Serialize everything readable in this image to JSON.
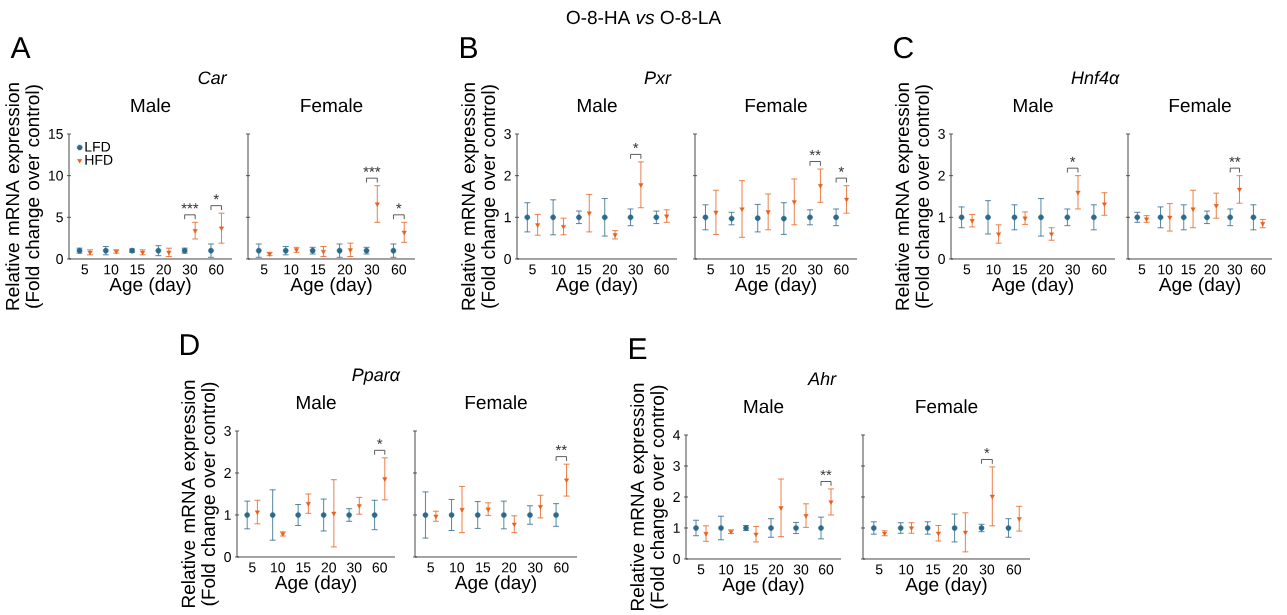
{
  "chart_data": [
    {
      "type": "scatter",
      "title": "*Car*",
      "subtitle": "Male",
      "xlabel": "Age (day)",
      "ylabel": "Relative  mRNA expression (Fold change over control)",
      "categories": [
        "5",
        "10",
        "15",
        "20",
        "30",
        "60"
      ],
      "ylim": [
        0,
        15
      ],
      "yticks": [
        0,
        5,
        10,
        15
      ],
      "legend": "top left",
      "series": [
        {
          "name": "LFD",
          "color": "#2b6a8c",
          "marker": "circle",
          "values": [
            1,
            1,
            1,
            1,
            1,
            1
          ],
          "errors": [
            0.3,
            0.5,
            0.2,
            0.6,
            0.3,
            0.8
          ]
        },
        {
          "name": "HFD",
          "color": "#e8601c",
          "marker": "triangle",
          "values": [
            0.8,
            0.9,
            0.8,
            0.8,
            3.4,
            3.7
          ],
          "errors": [
            0.3,
            0.2,
            0.3,
            0.5,
            1.0,
            1.8
          ]
        }
      ],
      "annotations": [
        "O-8-HA *vs* O-8-LA",
        "A",
        {
          "text": "***",
          "x": "30",
          "y": 3.4
        },
        {
          "text": "*",
          "x": "60",
          "y": 3.7
        }
      ]
    },
    {
      "type": "scatter",
      "subtitle": "Female",
      "xlabel": "Age (day)",
      "categories": [
        "5",
        "10",
        "15",
        "20",
        "30",
        "60"
      ],
      "ylim": [
        0,
        15
      ],
      "yticks": [
        0,
        5,
        10,
        15
      ],
      "tick_labels": "x",
      "series": [
        {
          "color": "#2b6a8c",
          "marker": "circle",
          "values": [
            1,
            1,
            1,
            1,
            1,
            1
          ],
          "errors": [
            0.8,
            0.5,
            0.4,
            0.8,
            0.4,
            0.8
          ]
        },
        {
          "color": "#e8601c",
          "marker": "triangle",
          "values": [
            0.6,
            1.1,
            0.9,
            1.1,
            6.6,
            3.2
          ],
          "errors": [
            0.2,
            0.3,
            0.6,
            0.8,
            2.2,
            1.2
          ]
        }
      ],
      "annotations": [
        {
          "text": "***",
          "x": "30",
          "y": 6.6
        },
        {
          "text": "*",
          "x": "60",
          "y": 3.2
        }
      ]
    },
    {
      "type": "scatter",
      "title": "*Pxr*",
      "subtitle": "Male",
      "xlabel": "Age (day)",
      "ylabel": "Relative  mRNA expression (Fold change over control)",
      "categories": [
        "5",
        "10",
        "15",
        "20",
        "30",
        "60"
      ],
      "ylim": [
        0,
        3
      ],
      "yticks": [
        0,
        1,
        2,
        3
      ],
      "series": [
        {
          "color": "#2b6a8c",
          "marker": "circle",
          "values": [
            1,
            1,
            1,
            1,
            1,
            1
          ],
          "errors": [
            0.35,
            0.42,
            0.15,
            0.45,
            0.2,
            0.15
          ]
        },
        {
          "color": "#e8601c",
          "marker": "triangle",
          "values": [
            0.82,
            0.78,
            1.1,
            0.58,
            1.78,
            1.03
          ],
          "errors": [
            0.25,
            0.2,
            0.45,
            0.1,
            0.55,
            0.15
          ]
        }
      ],
      "annotations": [
        "B",
        {
          "text": "*",
          "x": "30",
          "y": 1.78
        }
      ]
    },
    {
      "type": "scatter",
      "subtitle": "Female",
      "xlabel": "Age (day)",
      "categories": [
        "5",
        "10",
        "15",
        "20",
        "30",
        "60"
      ],
      "ylim": [
        0,
        3
      ],
      "yticks": [
        0,
        1,
        2,
        3
      ],
      "tick_labels": "x",
      "series": [
        {
          "color": "#2b6a8c",
          "marker": "circle",
          "values": [
            1,
            0.97,
            0.98,
            0.97,
            1.0,
            1.0
          ],
          "errors": [
            0.3,
            0.15,
            0.33,
            0.38,
            0.18,
            0.2
          ]
        },
        {
          "color": "#e8601c",
          "marker": "triangle",
          "values": [
            1.12,
            1.2,
            1.13,
            1.37,
            1.76,
            1.43
          ],
          "errors": [
            0.53,
            0.68,
            0.43,
            0.55,
            0.4,
            0.33
          ]
        }
      ],
      "annotations": [
        {
          "text": "**",
          "x": "30",
          "y": 1.76
        },
        {
          "text": "*",
          "x": "60",
          "y": 1.43
        }
      ]
    },
    {
      "type": "scatter",
      "title": "*Hnf4α*",
      "subtitle": "Male",
      "xlabel": "Age (day)",
      "ylabel": "Relative  mRNA expression (Fold change over control)",
      "categories": [
        "5",
        "10",
        "15",
        "20",
        "30",
        "60"
      ],
      "ylim": [
        0,
        3
      ],
      "yticks": [
        0,
        1,
        2,
        3
      ],
      "series": [
        {
          "color": "#2b6a8c",
          "marker": "circle",
          "values": [
            1,
            1,
            1,
            1,
            1,
            1
          ],
          "errors": [
            0.25,
            0.4,
            0.3,
            0.45,
            0.2,
            0.3
          ]
        },
        {
          "color": "#e8601c",
          "marker": "triangle",
          "values": [
            0.92,
            0.6,
            0.98,
            0.6,
            1.6,
            1.32
          ],
          "errors": [
            0.15,
            0.22,
            0.15,
            0.15,
            0.4,
            0.27
          ]
        }
      ],
      "annotations": [
        "C",
        {
          "text": "*",
          "x": "30",
          "y": 1.6
        }
      ]
    },
    {
      "type": "scatter",
      "subtitle": "Female",
      "xlabel": "Age (day)",
      "categories": [
        "5",
        "10",
        "15",
        "20",
        "30",
        "60"
      ],
      "ylim": [
        0,
        3
      ],
      "yticks": [
        0,
        1,
        2,
        3
      ],
      "tick_labels": "x",
      "series": [
        {
          "color": "#2b6a8c",
          "marker": "circle",
          "values": [
            1,
            1,
            1,
            1,
            1,
            1
          ],
          "errors": [
            0.12,
            0.25,
            0.3,
            0.15,
            0.2,
            0.3
          ]
        },
        {
          "color": "#e8601c",
          "marker": "triangle",
          "values": [
            0.96,
            1.0,
            1.2,
            1.28,
            1.67,
            0.85
          ],
          "errors": [
            0.08,
            0.33,
            0.45,
            0.3,
            0.33,
            0.1
          ]
        }
      ],
      "annotations": [
        {
          "text": "**",
          "x": "30",
          "y": 1.67
        }
      ]
    },
    {
      "type": "scatter",
      "title": "*Pparα*",
      "subtitle": "Male",
      "xlabel": "Age (day)",
      "ylabel": "Relative  mRNA expression (Fold change over control)",
      "categories": [
        "5",
        "10",
        "15",
        "20",
        "30",
        "60"
      ],
      "ylim": [
        0,
        3
      ],
      "yticks": [
        0,
        1,
        2,
        3
      ],
      "series": [
        {
          "color": "#2b6a8c",
          "marker": "circle",
          "values": [
            1,
            1,
            1,
            1,
            1,
            1
          ],
          "errors": [
            0.33,
            0.6,
            0.25,
            0.38,
            0.15,
            0.35
          ]
        },
        {
          "color": "#e8601c",
          "marker": "triangle",
          "values": [
            1.07,
            0.55,
            1.27,
            1.04,
            1.22,
            1.86
          ],
          "errors": [
            0.28,
            0.05,
            0.23,
            0.8,
            0.2,
            0.5
          ]
        }
      ],
      "annotations": [
        "D",
        {
          "text": "*",
          "x": "60",
          "y": 1.86
        }
      ]
    },
    {
      "type": "scatter",
      "subtitle": "Female",
      "xlabel": "Age (day)",
      "categories": [
        "5",
        "10",
        "15",
        "20",
        "30",
        "60"
      ],
      "ylim": [
        0,
        3
      ],
      "yticks": [
        0,
        1,
        2,
        3
      ],
      "tick_labels": "x",
      "series": [
        {
          "color": "#2b6a8c",
          "marker": "circle",
          "values": [
            1,
            1,
            1,
            1,
            1,
            1
          ],
          "errors": [
            0.55,
            0.37,
            0.32,
            0.33,
            0.22,
            0.27
          ]
        },
        {
          "color": "#e8601c",
          "marker": "triangle",
          "values": [
            0.97,
            1.13,
            1.14,
            0.78,
            1.2,
            1.83
          ],
          "errors": [
            0.12,
            0.55,
            0.15,
            0.2,
            0.27,
            0.38
          ]
        }
      ],
      "annotations": [
        {
          "text": "**",
          "x": "60",
          "y": 1.83
        }
      ]
    },
    {
      "type": "scatter",
      "title": "*Ahr*",
      "subtitle": "Male",
      "xlabel": "Age (day)",
      "ylabel": "Relative  mRNA expression (Fold change over control)",
      "categories": [
        "5",
        "10",
        "15",
        "20",
        "30",
        "60"
      ],
      "ylim": [
        0,
        4
      ],
      "yticks": [
        0,
        1,
        2,
        3,
        4
      ],
      "series": [
        {
          "color": "#2b6a8c",
          "marker": "circle",
          "values": [
            1,
            1,
            1,
            1,
            1,
            1
          ],
          "errors": [
            0.25,
            0.38,
            0.08,
            0.3,
            0.18,
            0.35
          ]
        },
        {
          "color": "#e8601c",
          "marker": "triangle",
          "values": [
            0.82,
            0.88,
            0.8,
            1.65,
            1.4,
            1.84
          ],
          "errors": [
            0.25,
            0.06,
            0.25,
            0.93,
            0.38,
            0.42
          ]
        }
      ],
      "annotations": [
        "E",
        {
          "text": "**",
          "x": "60",
          "y": 1.84
        }
      ]
    },
    {
      "type": "scatter",
      "subtitle": "Female",
      "xlabel": "Age (day)",
      "categories": [
        "5",
        "10",
        "15",
        "20",
        "30",
        "60"
      ],
      "ylim": [
        0,
        4
      ],
      "yticks": [
        0,
        1,
        2,
        3,
        4
      ],
      "tick_labels": "x",
      "series": [
        {
          "color": "#2b6a8c",
          "marker": "circle",
          "values": [
            1,
            1,
            1,
            1,
            1,
            1
          ],
          "errors": [
            0.2,
            0.17,
            0.2,
            0.45,
            0.12,
            0.3
          ]
        },
        {
          "color": "#e8601c",
          "marker": "triangle",
          "values": [
            0.83,
            1.0,
            0.83,
            0.86,
            2.02,
            1.3
          ],
          "errors": [
            0.08,
            0.17,
            0.25,
            0.63,
            0.95,
            0.4
          ]
        }
      ],
      "annotations": [
        {
          "text": "*",
          "x": "30",
          "y": 2.02
        }
      ]
    }
  ]
}
